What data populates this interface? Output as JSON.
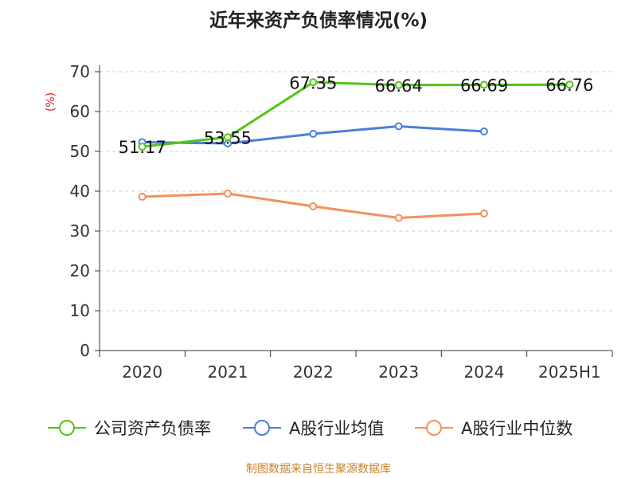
{
  "chart_data": {
    "type": "line",
    "title": "近年来资产负债率情况(%)",
    "ylabel": "(%)",
    "ylim": [
      0,
      70
    ],
    "yticks": [
      0,
      10,
      20,
      30,
      40,
      50,
      60,
      70
    ],
    "categories": [
      "2020",
      "2021",
      "2022",
      "2023",
      "2024",
      "2025H1"
    ],
    "grid": true,
    "legend_position": "bottom",
    "series": [
      {
        "name": "公司资产负债率",
        "color": "#52c41a",
        "values": [
          51.17,
          53.55,
          67.35,
          66.64,
          66.69,
          66.76
        ],
        "labels": [
          "51.17",
          "53.55",
          "67.35",
          "66.64",
          "66.69",
          "66.76"
        ]
      },
      {
        "name": "A股行业均值",
        "color": "#4a7fdc",
        "values": [
          52.3,
          52.0,
          54.4,
          56.3,
          55.0,
          null
        ]
      },
      {
        "name": "A股行业中位数",
        "color": "#f4905d",
        "values": [
          38.6,
          39.4,
          36.2,
          33.3,
          34.4,
          null
        ]
      }
    ]
  },
  "footer": {
    "source": "制图数据来自恒生聚源数据库"
  }
}
